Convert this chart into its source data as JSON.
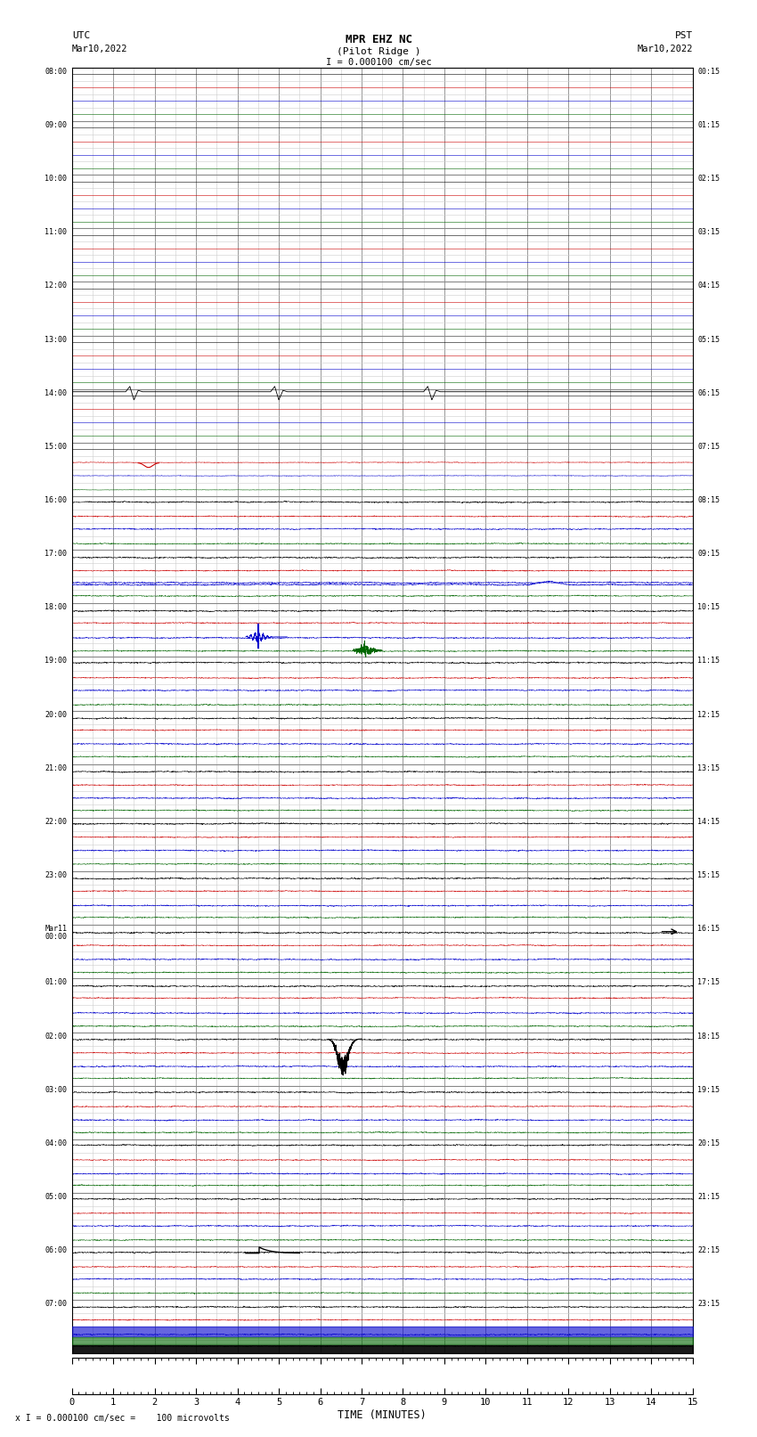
{
  "title_line1": "MPR EHZ NC",
  "title_line2": "(Pilot Ridge )",
  "scale_label": "I = 0.000100 cm/sec",
  "left_label_top": "UTC",
  "left_label_date": "Mar10,2022",
  "right_label_top": "PST",
  "right_label_date": "Mar10,2022",
  "bottom_label": "TIME (MINUTES)",
  "footnote": "x I = 0.000100 cm/sec =    100 microvolts",
  "bg_color": "#ffffff",
  "grid_color_major": "#888888",
  "grid_color_minor": "#cccccc",
  "trace_color_black": "#000000",
  "trace_color_red": "#cc0000",
  "trace_color_blue": "#0000cc",
  "trace_color_green": "#006600",
  "fig_width": 8.5,
  "fig_height": 16.13,
  "dpi": 100,
  "num_hour_rows": 24,
  "row_labels_left": [
    "08:00",
    "09:00",
    "10:00",
    "11:00",
    "12:00",
    "13:00",
    "14:00",
    "15:00",
    "16:00",
    "17:00",
    "18:00",
    "19:00",
    "20:00",
    "21:00",
    "22:00",
    "23:00",
    "Mar11\n00:00",
    "01:00",
    "02:00",
    "03:00",
    "04:00",
    "05:00",
    "06:00",
    "07:00"
  ],
  "row_labels_right": [
    "00:15",
    "01:15",
    "02:15",
    "03:15",
    "04:15",
    "05:15",
    "06:15",
    "07:15",
    "08:15",
    "09:15",
    "10:15",
    "11:15",
    "12:15",
    "13:15",
    "14:15",
    "15:15",
    "16:15",
    "17:15",
    "18:15",
    "19:15",
    "20:15",
    "21:15",
    "22:15",
    "23:15"
  ]
}
